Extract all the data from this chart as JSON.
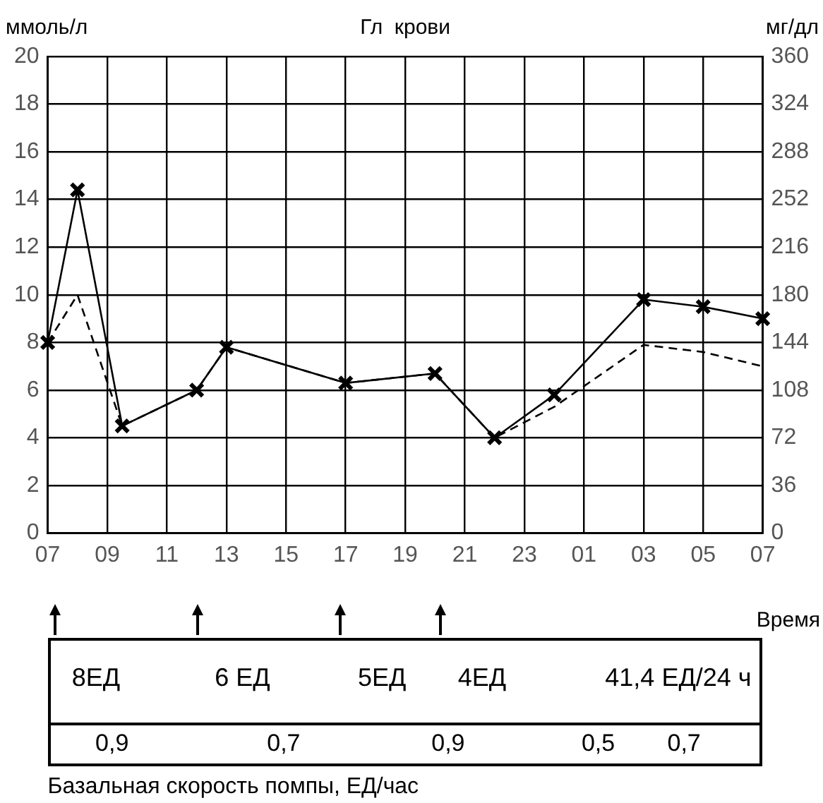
{
  "chart_data": {
    "type": "line",
    "title": "Гл  крови",
    "ylabel": "ммоль/л",
    "y2label": "мг/дл",
    "xlabel": "Время",
    "categories": [
      "07",
      null,
      null,
      null,
      "09",
      null,
      null,
      null,
      "11",
      null,
      null,
      null,
      "13",
      null,
      null,
      null,
      "15",
      null,
      null,
      null,
      "17",
      null,
      null,
      null,
      "19",
      null,
      null,
      null,
      "21",
      null,
      null,
      null,
      "23",
      null,
      null,
      null,
      "01",
      null,
      null,
      null,
      "03",
      null,
      null,
      null,
      "05",
      null,
      null,
      null,
      "07"
    ],
    "series": [
      {
        "color": "#000000",
        "marker": "cross",
        "line_style": "solid",
        "values": [
          8,
          null,
          14.4,
          null,
          null,
          4.5,
          null,
          null,
          null,
          null,
          6,
          null,
          7.8,
          null,
          null,
          null,
          null,
          null,
          null,
          null,
          6.3,
          null,
          null,
          null,
          null,
          null,
          6.7,
          null,
          null,
          null,
          4,
          null,
          null,
          null,
          5.8,
          null,
          null,
          null,
          null,
          null,
          9.8,
          null,
          null,
          null,
          9.5,
          null,
          null,
          null,
          9
        ]
      },
      {
        "color": "#000000",
        "marker": "none",
        "line_style": "dashed",
        "values": [
          8,
          null,
          10,
          null,
          null,
          4.5,
          null,
          null,
          null,
          null,
          6,
          null,
          7.8,
          null,
          null,
          null,
          null,
          null,
          null,
          null,
          6.3,
          null,
          null,
          null,
          null,
          null,
          6.7,
          null,
          null,
          null,
          4,
          null,
          null,
          null,
          5.3,
          null,
          null,
          null,
          null,
          null,
          7.9,
          null,
          null,
          null,
          7.6,
          null,
          null,
          null,
          7
        ]
      }
    ],
    "ylim": [
      0,
      20
    ],
    "yticks": [
      0,
      2,
      4,
      6,
      8,
      10,
      12,
      14,
      16,
      18,
      20
    ],
    "y2lim": [
      0,
      360
    ],
    "y2ticks": [
      0,
      36,
      72,
      108,
      144,
      180,
      216,
      252,
      288,
      324,
      360
    ],
    "grid": true,
    "legend": false,
    "annotations": [
      "8ЕД",
      "6  ЕД",
      "5ЕД",
      "4ЕД",
      "41,4 ЕД/24 ч",
      "0,9",
      "0,7",
      "0,9",
      "0,5",
      "0,7",
      "Базальная скорость помпы, ЕД/час"
    ]
  }
}
